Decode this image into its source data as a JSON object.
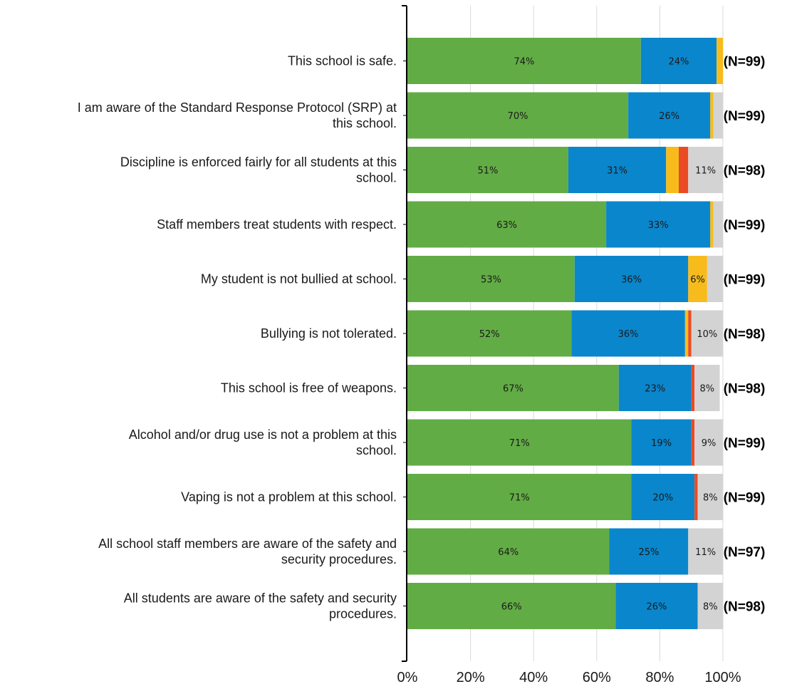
{
  "chart_data": {
    "type": "bar",
    "orientation": "horizontal",
    "stacked": true,
    "categories": [
      "This school is safe.",
      "I am aware of the Standard Response Protocol (SRP) at this school.",
      "Discipline is enforced fairly for all students at this school.",
      "Staff members treat students with respect.",
      "My student is not bullied at school.",
      "Bullying is not tolerated.",
      "This school is free of weapons.",
      "Alcohol and/or drug use is not a problem at this school.",
      "Vaping is not a problem at this school.",
      "All school staff members are aware of the safety and security procedures.",
      "All students are aware of the safety and security procedures."
    ],
    "category_lines": [
      [
        "This school is safe."
      ],
      [
        "I am aware of the Standard Response Protocol (SRP) at",
        "this school."
      ],
      [
        "Discipline is enforced fairly for all students at this",
        "school."
      ],
      [
        "Staff members treat students with respect."
      ],
      [
        "My student is not bullied at school."
      ],
      [
        "Bullying is not tolerated."
      ],
      [
        "This school is free of weapons."
      ],
      [
        "Alcohol and/or drug use is not a problem at this",
        "school."
      ],
      [
        "Vaping is not a problem at this school."
      ],
      [
        "All school staff members are aware of the safety and",
        "security procedures."
      ],
      [
        "All students are aware of the safety and security",
        "procedures."
      ]
    ],
    "series": [
      {
        "color": "#62ac45",
        "values": [
          74,
          70,
          51,
          63,
          53,
          52,
          67,
          71,
          71,
          64,
          66
        ]
      },
      {
        "color": "#0a86cc",
        "values": [
          24,
          26,
          31,
          33,
          36,
          36,
          23,
          19,
          20,
          25,
          26
        ]
      },
      {
        "color": "#f7bc1c",
        "values": [
          2,
          1,
          4,
          1,
          6,
          1,
          0,
          0,
          0,
          0,
          0
        ]
      },
      {
        "color": "#ea4b24",
        "values": [
          0,
          0,
          3,
          0,
          0,
          1,
          1,
          1,
          1,
          0,
          0
        ]
      },
      {
        "color": "#d3d3d3",
        "values": [
          0,
          3,
          11,
          3,
          5,
          10,
          8,
          9,
          8,
          11,
          8
        ]
      }
    ],
    "data_labels": [
      [
        "74%",
        "24%",
        "",
        "",
        ""
      ],
      [
        "70%",
        "26%",
        "",
        "",
        ""
      ],
      [
        "51%",
        "31%",
        "",
        "",
        "11%"
      ],
      [
        "63%",
        "33%",
        "",
        "",
        ""
      ],
      [
        "53%",
        "36%",
        "6%",
        "",
        ""
      ],
      [
        "52%",
        "36%",
        "",
        "",
        "10%"
      ],
      [
        "67%",
        "23%",
        "",
        "",
        "8%"
      ],
      [
        "71%",
        "19%",
        "",
        "",
        "9%"
      ],
      [
        "71%",
        "20%",
        "",
        "",
        "8%"
      ],
      [
        "64%",
        "25%",
        "",
        "",
        "11%"
      ],
      [
        "66%",
        "26%",
        "",
        "",
        "8%"
      ]
    ],
    "n_labels": [
      "(N=99)",
      "(N=99)",
      "(N=98)",
      "(N=99)",
      "(N=99)",
      "(N=98)",
      "(N=98)",
      "(N=99)",
      "(N=99)",
      "(N=97)",
      "(N=98)"
    ],
    "xlim": [
      0,
      100
    ],
    "x_ticks": [
      "0%",
      "20%",
      "40%",
      "60%",
      "80%",
      "100%"
    ],
    "grid": true,
    "legend": "none"
  }
}
